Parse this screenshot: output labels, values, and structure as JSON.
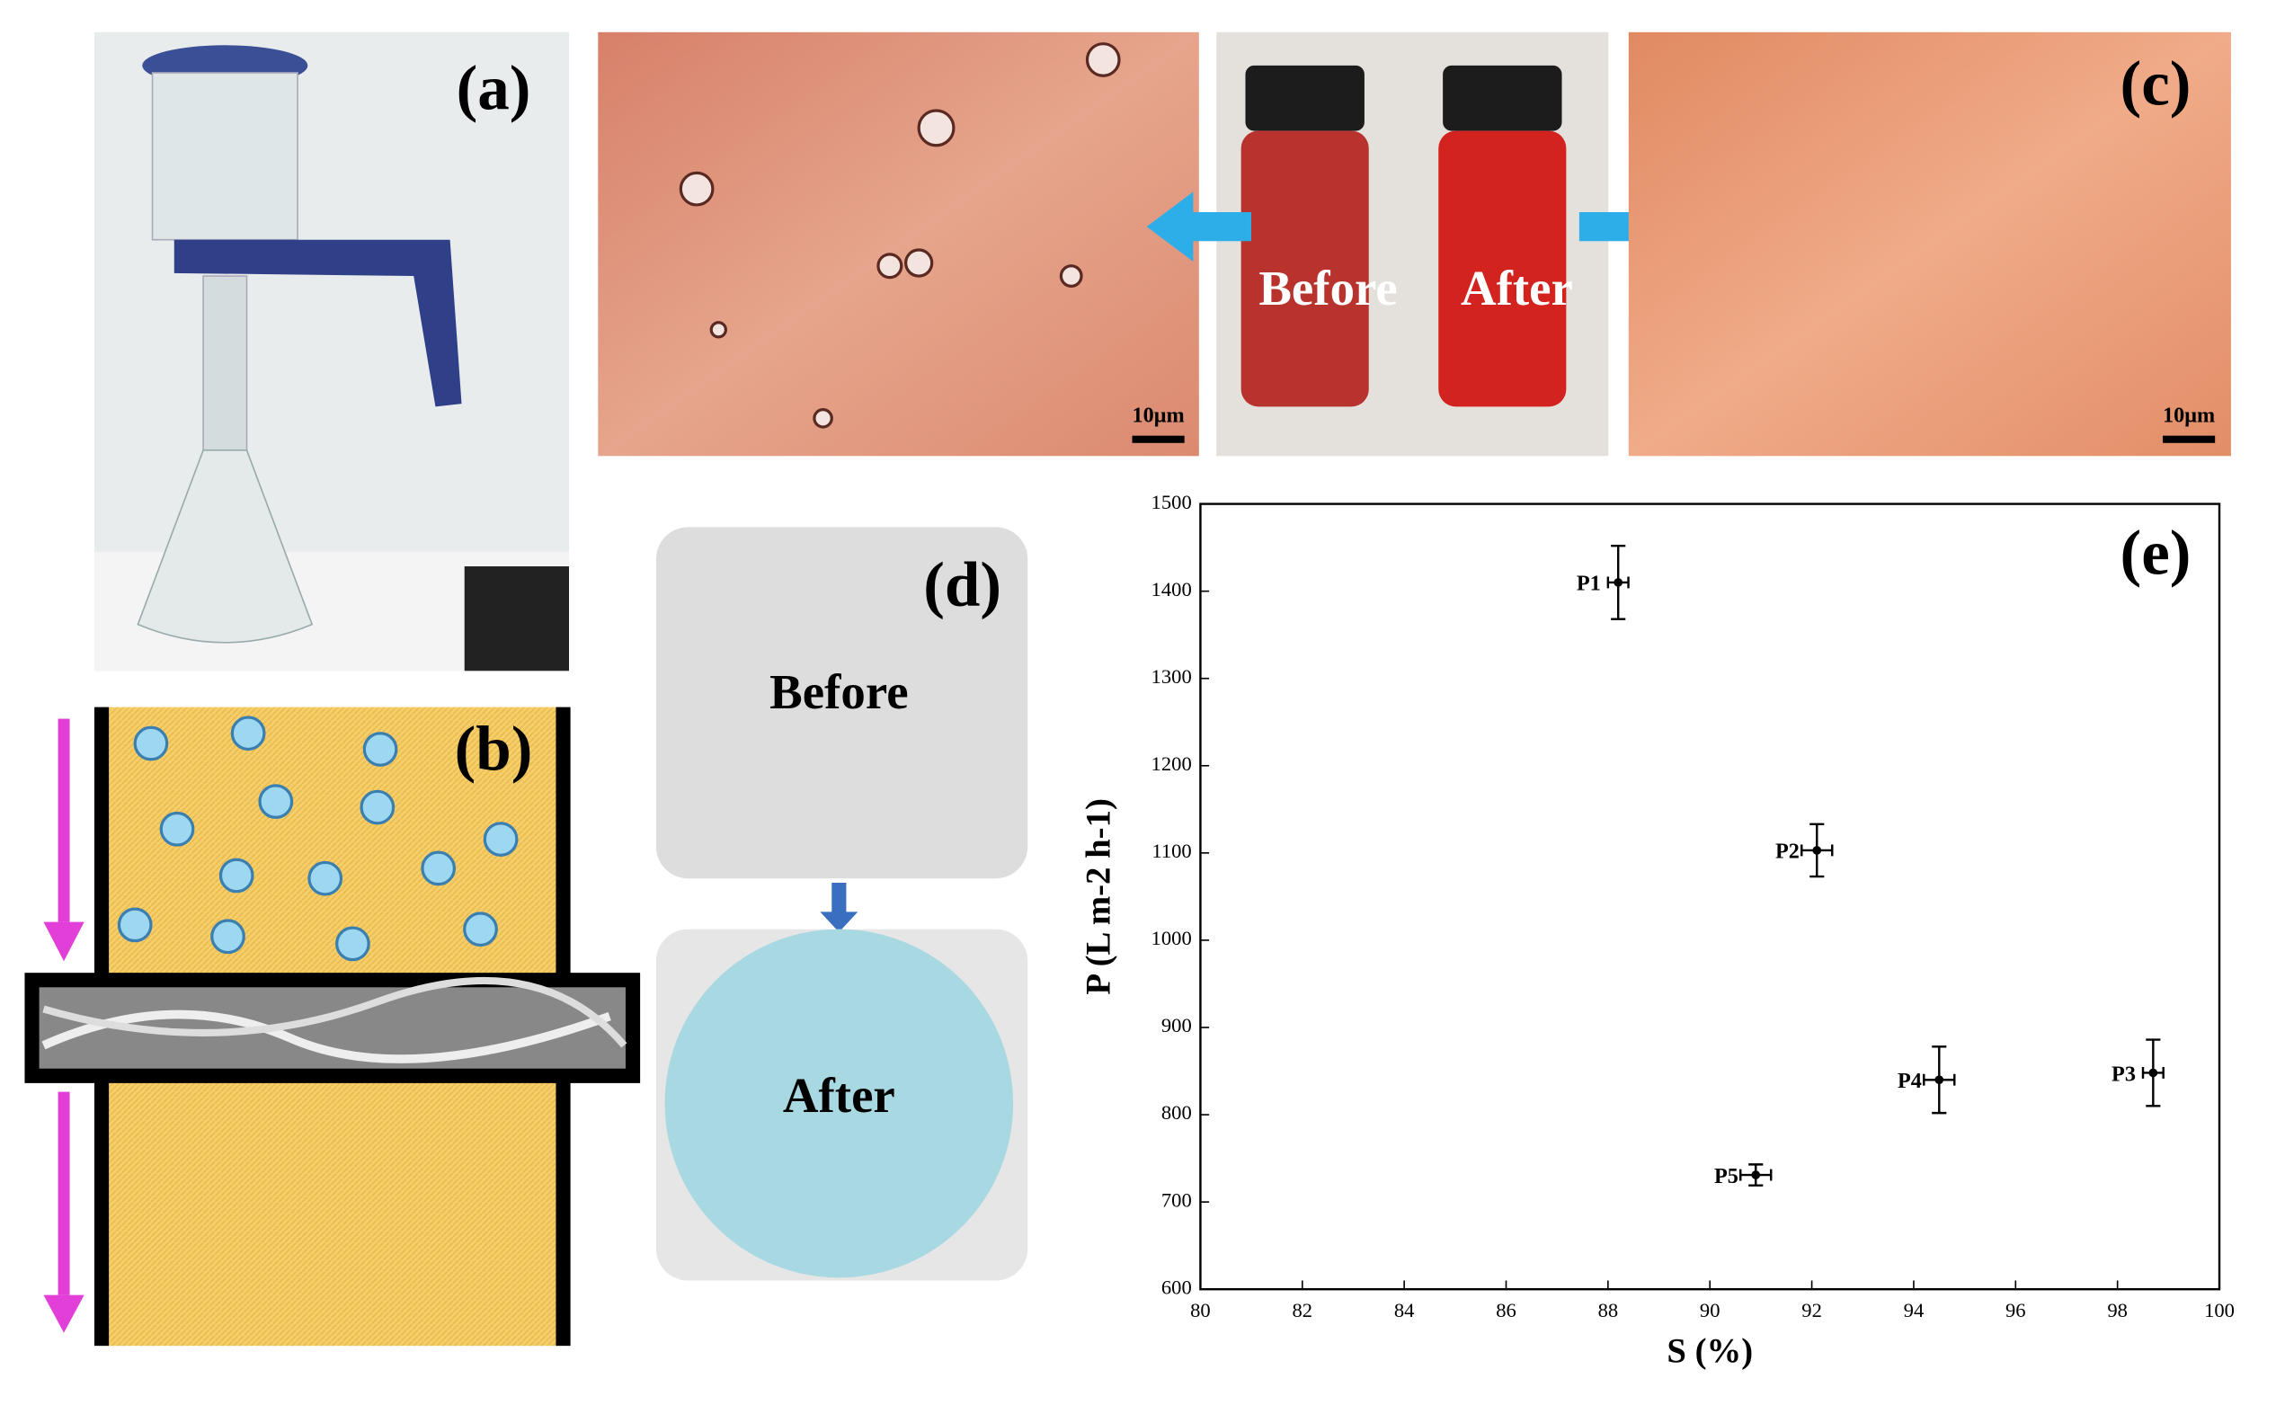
{
  "panels": {
    "a": {
      "label": "(a)"
    },
    "b": {
      "label": "(b)"
    },
    "c": {
      "label": "(c)",
      "before": "Before",
      "after": "After",
      "scale_left": "10μm",
      "scale_right": "10μm"
    },
    "d": {
      "label": "(d)",
      "before": "Before",
      "after": "After"
    }
  },
  "chart_data": {
    "type": "scatter",
    "panel_label": "(e)",
    "xlabel": "S (%)",
    "ylabel": "P (L m-2 h-1)",
    "x": [
      88.2,
      92.1,
      98.7,
      94.5,
      90.9
    ],
    "values": [
      1410,
      1103,
      848,
      840,
      731
    ],
    "xerr": [
      0.2,
      0.3,
      0.2,
      0.3,
      0.3
    ],
    "yerr": [
      42,
      30,
      38,
      38,
      12
    ],
    "labels": [
      "P1",
      "P2",
      "P3",
      "P4",
      "P5"
    ],
    "color": "#000000",
    "xlim": [
      80,
      100
    ],
    "xticks": [
      80,
      82,
      84,
      86,
      88,
      90,
      92,
      94,
      96,
      98,
      100
    ],
    "ylim": [
      600,
      1500
    ],
    "yticks": [
      600,
      700,
      800,
      900,
      1000,
      1100,
      1200,
      1300,
      1400,
      1500
    ]
  }
}
